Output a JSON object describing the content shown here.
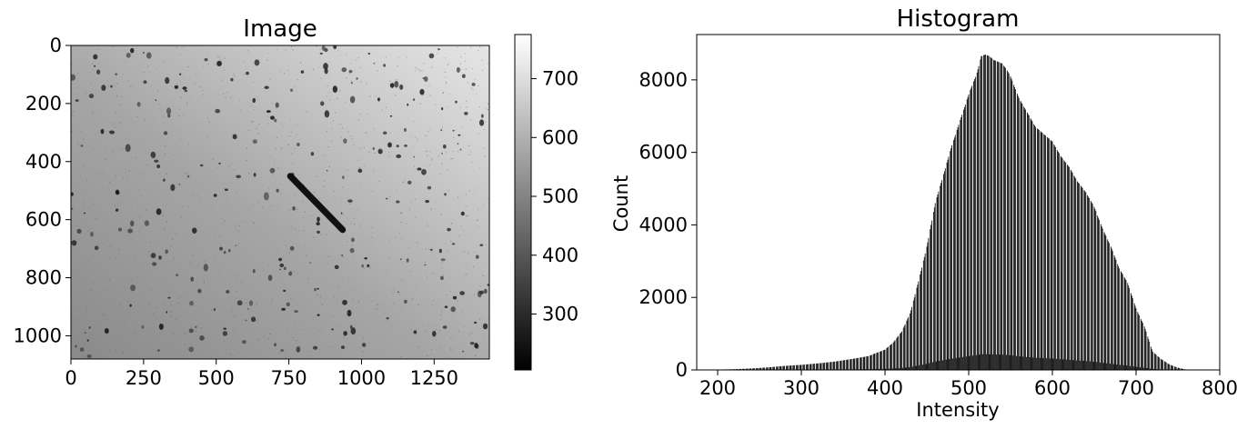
{
  "chart_data": [
    {
      "type": "heatmap",
      "title": "Image",
      "xlabel": "",
      "ylabel": "",
      "xlim": [
        0,
        1440
      ],
      "ylim": [
        1080,
        0
      ],
      "xticks": [
        0,
        250,
        500,
        750,
        1000,
        1250
      ],
      "yticks": [
        0,
        200,
        400,
        600,
        800,
        1000
      ],
      "colormap": "gray",
      "colorbar": {
        "range": [
          205,
          775
        ],
        "ticks": [
          300,
          400,
          500,
          600,
          700
        ]
      },
      "features": {
        "background_gradient": "darker on the left, lighter toward the upper right",
        "dark_streak": {
          "from": [
            755,
            450
          ],
          "to": [
            935,
            635
          ]
        }
      }
    },
    {
      "type": "bar",
      "title": "Histogram",
      "xlabel": "Intensity",
      "ylabel": "Count",
      "xlim": [
        175,
        800
      ],
      "ylim": [
        0,
        9250
      ],
      "xticks": [
        200,
        300,
        400,
        500,
        600,
        700,
        800
      ],
      "yticks": [
        0,
        2000,
        4000,
        6000,
        8000
      ],
      "bar_color": "#000000",
      "bin_step": 1,
      "envelope": {
        "x": [
          200,
          220,
          240,
          260,
          280,
          300,
          320,
          340,
          360,
          380,
          400,
          410,
          420,
          430,
          440,
          450,
          460,
          470,
          480,
          490,
          500,
          510,
          515,
          520,
          525,
          530,
          535,
          540,
          545,
          550,
          560,
          570,
          580,
          590,
          600,
          610,
          620,
          630,
          640,
          650,
          660,
          670,
          680,
          690,
          700,
          710,
          720,
          730,
          740,
          750,
          760
        ],
        "y": [
          10,
          20,
          40,
          70,
          110,
          140,
          180,
          230,
          300,
          380,
          560,
          760,
          1060,
          1560,
          2440,
          3400,
          4600,
          5400,
          6200,
          6900,
          7600,
          8200,
          8650,
          8700,
          8650,
          8550,
          8500,
          8450,
          8300,
          8100,
          7500,
          7100,
          6700,
          6500,
          6300,
          5900,
          5600,
          5200,
          4900,
          4500,
          3900,
          3400,
          2800,
          2400,
          1700,
          1200,
          500,
          300,
          150,
          60,
          10
        ]
      }
    }
  ]
}
